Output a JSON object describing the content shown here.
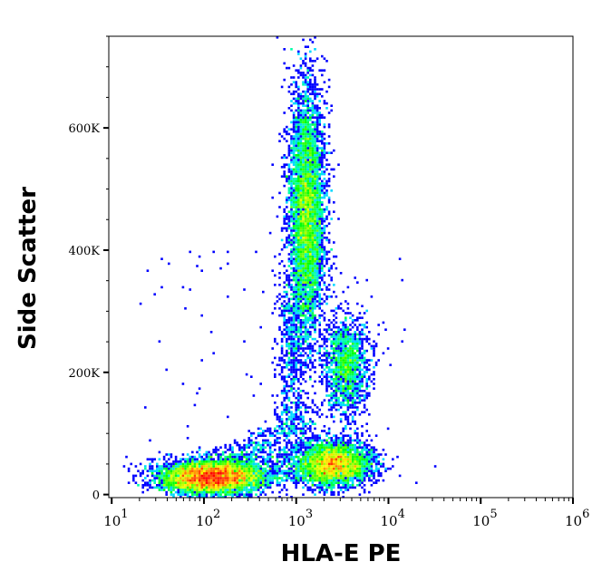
{
  "chart_data": {
    "type": "heatmap",
    "subtype": "flow-cytometry-density-dot-plot",
    "xlabel": "HLA-E PE",
    "ylabel": "Side Scatter",
    "x_scale": "log",
    "xlim": [
      9.3,
      1000000
    ],
    "ylim": [
      -5000,
      750000
    ],
    "x_ticks": [
      {
        "value": 10,
        "base": "10",
        "exp": "1"
      },
      {
        "value": 100,
        "base": "10",
        "exp": "2"
      },
      {
        "value": 1000,
        "base": "10",
        "exp": "3"
      },
      {
        "value": 10000,
        "base": "10",
        "exp": "4"
      },
      {
        "value": 100000,
        "base": "10",
        "exp": "5"
      },
      {
        "value": 1000000,
        "base": "10",
        "exp": "6"
      }
    ],
    "y_ticks": [
      {
        "value": 0,
        "label": "0"
      },
      {
        "value": 200000,
        "label": "200K"
      },
      {
        "value": 400000,
        "label": "400K"
      },
      {
        "value": 600000,
        "label": "600K"
      }
    ],
    "grid": false,
    "colormap": [
      "#0000ff",
      "#00ffff",
      "#00ff00",
      "#ffff00",
      "#ff0000"
    ],
    "populations": [
      {
        "x_center": 120,
        "x_log_sd": 0.28,
        "y_center": 28000,
        "y_sd": 14000,
        "events": 6000
      },
      {
        "x_center": 2600,
        "x_log_sd": 0.2,
        "y_center": 50000,
        "y_sd": 18000,
        "events": 3500
      },
      {
        "x_center": 1300,
        "x_log_sd": 0.1,
        "y_center": 460000,
        "y_sd": 105000,
        "events": 5000
      },
      {
        "x_center": 3500,
        "x_log_sd": 0.12,
        "y_center": 210000,
        "y_sd": 40000,
        "events": 1500
      }
    ]
  }
}
